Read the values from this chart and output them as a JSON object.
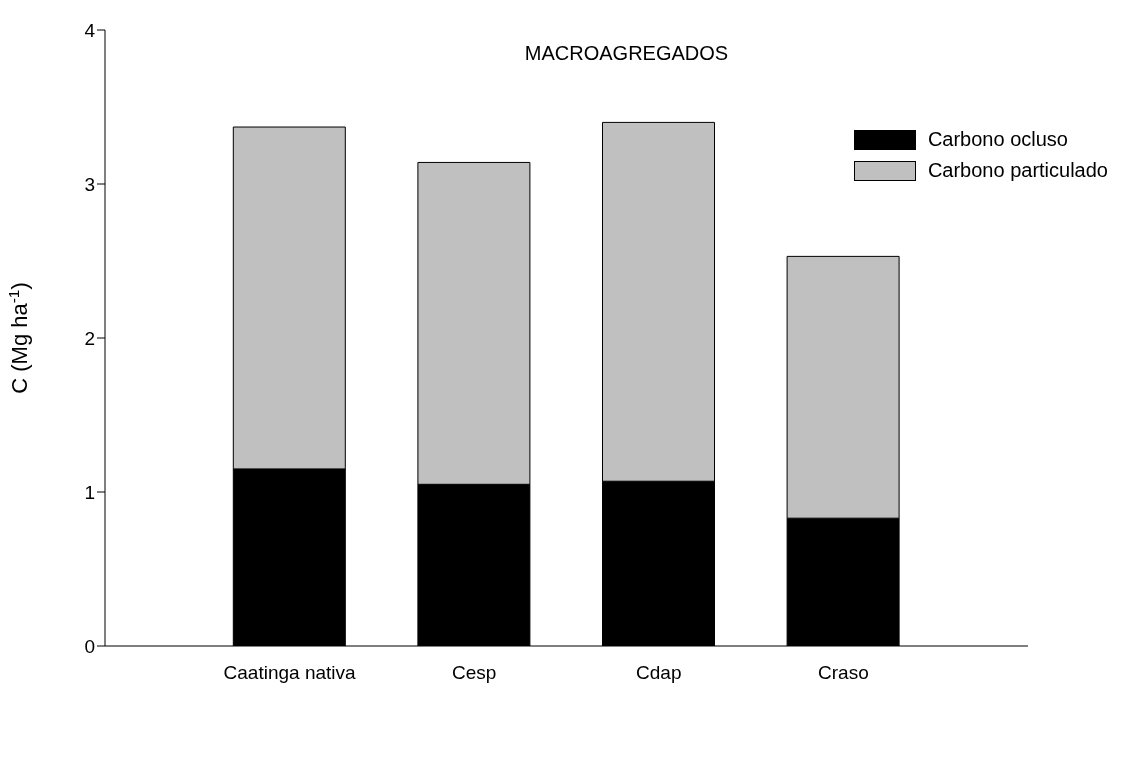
{
  "chart_data": {
    "type": "bar",
    "title": "MACROAGREGADOS",
    "ylabel": "C (Mg ha$^{-1}$)",
    "categories": [
      "Caatinga nativa",
      "Cesp",
      "Cdap",
      "Craso"
    ],
    "stacked": true,
    "series": [
      {
        "name": "Carbono ocluso",
        "color": "#000000",
        "values": [
          1.15,
          1.05,
          1.07,
          0.83
        ]
      },
      {
        "name": "Carbono particulado",
        "color": "#c0c0c0",
        "values": [
          2.22,
          2.09,
          2.33,
          1.7
        ]
      }
    ],
    "ylim": [
      0,
      4
    ],
    "yticks": [
      0,
      1,
      2,
      3,
      4
    ],
    "grid": false,
    "legend": "top right"
  }
}
